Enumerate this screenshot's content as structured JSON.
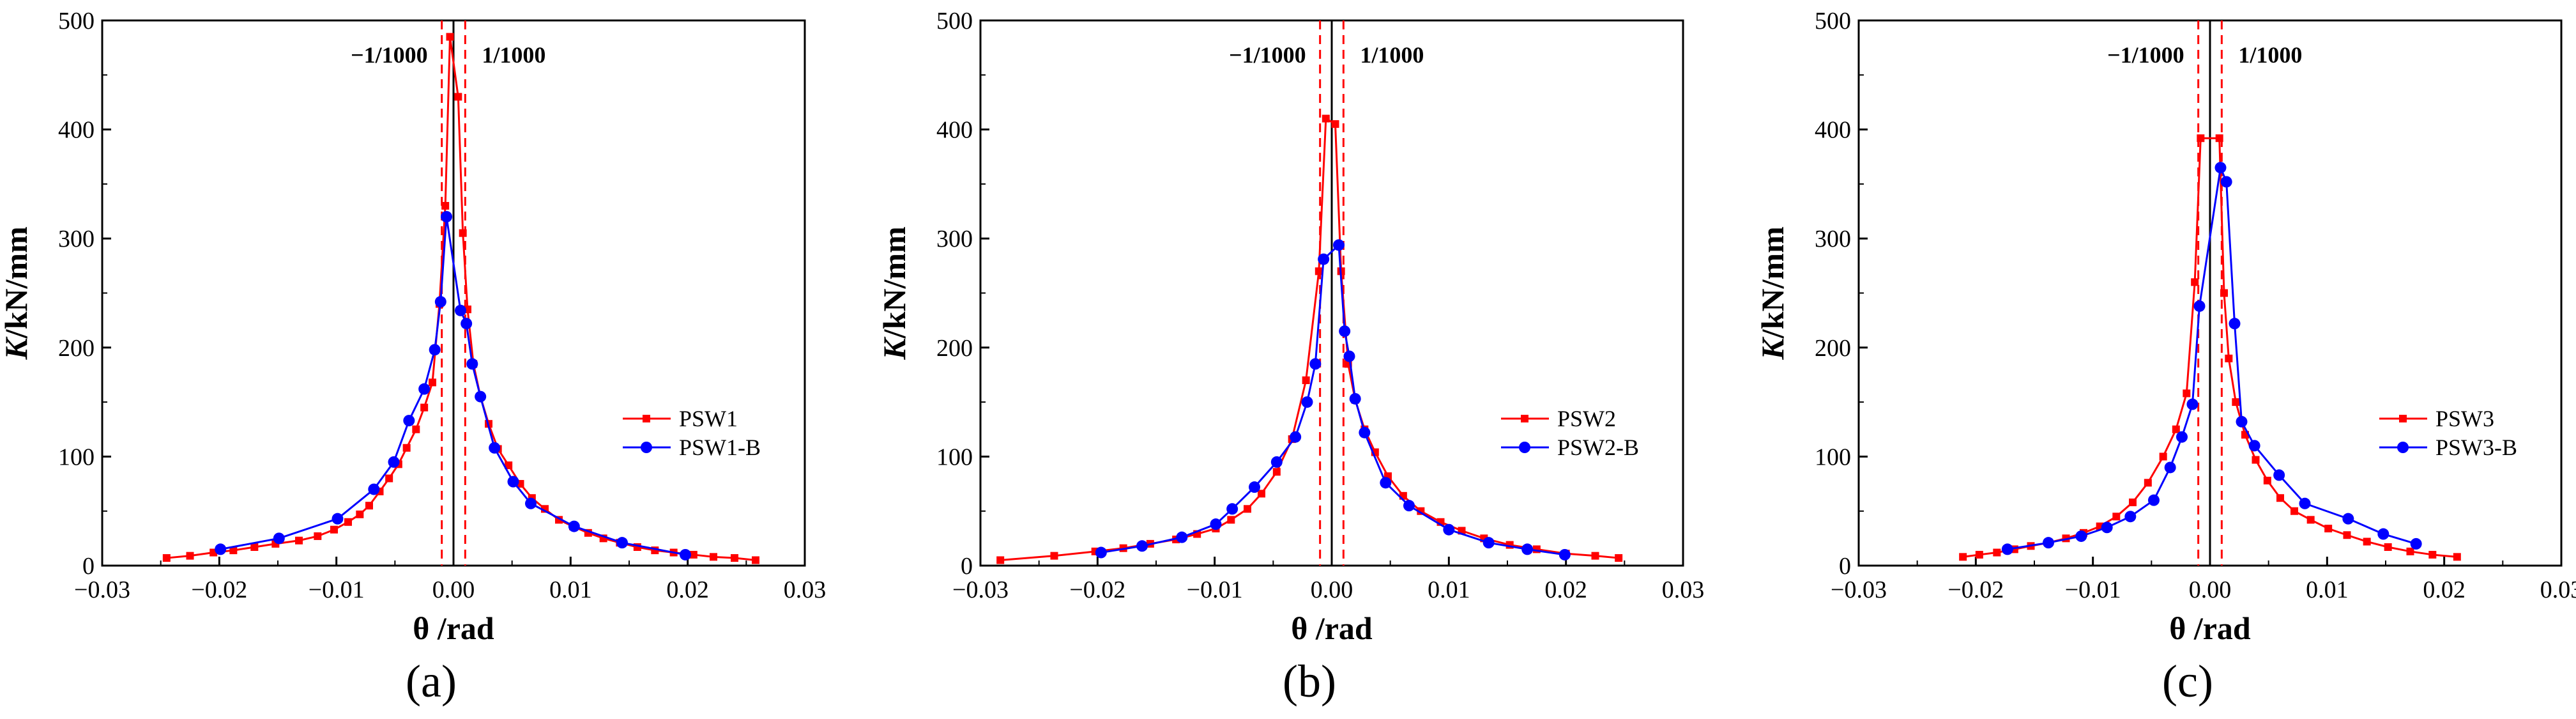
{
  "figure": {
    "panels": [
      "a",
      "b",
      "c"
    ]
  },
  "chart_data": [
    {
      "type": "line",
      "panel_label": "(a)",
      "xlabel": "θ /rad",
      "ylabel_italic": "K",
      "ylabel_rest": "/kN/mm",
      "xlim": [
        -0.03,
        0.03
      ],
      "ylim": [
        0,
        500
      ],
      "xticks": [
        "−0.03",
        "−0.02",
        "−0.01",
        "0.00",
        "0.01",
        "0.02",
        "0.03"
      ],
      "yticks": [
        "0",
        "100",
        "200",
        "300",
        "400",
        "500"
      ],
      "reference_lines": [
        {
          "x": -0.001,
          "label": "−1/1000"
        },
        {
          "x": 0.001,
          "label": "1/1000"
        }
      ],
      "legend_position": "right",
      "series": [
        {
          "name": "PSW1",
          "color": "#ff0000",
          "marker": "square",
          "x": [
            -0.0245,
            -0.0225,
            -0.0205,
            -0.0188,
            -0.017,
            -0.0152,
            -0.0132,
            -0.0116,
            -0.0102,
            -0.009,
            -0.008,
            -0.0072,
            -0.0063,
            -0.0055,
            -0.0047,
            -0.004,
            -0.0032,
            -0.0025,
            -0.0018,
            -0.0012,
            -0.0007,
            -0.0003,
            0.0004,
            0.0008,
            0.0012,
            0.0017,
            0.0023,
            0.003,
            0.0038,
            0.0047,
            0.0057,
            0.0067,
            0.0078,
            0.009,
            0.0102,
            0.0115,
            0.0128,
            0.0142,
            0.0157,
            0.0172,
            0.0188,
            0.0205,
            0.0222,
            0.024,
            0.0258
          ],
          "y": [
            7,
            9,
            12,
            14,
            17,
            20,
            23,
            27,
            33,
            40,
            47,
            55,
            68,
            80,
            93,
            108,
            125,
            145,
            168,
            240,
            330,
            485,
            430,
            305,
            235,
            185,
            155,
            130,
            107,
            92,
            75,
            62,
            52,
            42,
            36,
            30,
            25,
            21,
            17,
            14,
            12,
            10,
            8,
            7,
            5
          ]
        },
        {
          "name": "PSW1-B",
          "color": "#0000ff",
          "marker": "circle",
          "x": [
            -0.0199,
            -0.0149,
            -0.0099,
            -0.0068,
            -0.0051,
            -0.0038,
            -0.0025,
            -0.0016,
            -0.0011,
            -0.0006,
            0.0006,
            0.0011,
            0.0016,
            0.0023,
            0.0035,
            0.0051,
            0.0066,
            0.0103,
            0.0144,
            0.0198
          ],
          "y": [
            15,
            25,
            43,
            70,
            95,
            133,
            162,
            198,
            242,
            320,
            234,
            222,
            185,
            155,
            108,
            77,
            57,
            36,
            21,
            10
          ]
        }
      ]
    },
    {
      "type": "line",
      "panel_label": "(b)",
      "xlabel": "θ /rad",
      "ylabel_italic": "K",
      "ylabel_rest": "/kN/mm",
      "xlim": [
        -0.03,
        0.03
      ],
      "ylim": [
        0,
        500
      ],
      "xticks": [
        "−0.03",
        "−0.02",
        "−0.01",
        "0.00",
        "0.01",
        "0.02",
        "0.03"
      ],
      "yticks": [
        "0",
        "100",
        "200",
        "300",
        "400",
        "500"
      ],
      "reference_lines": [
        {
          "x": -0.001,
          "label": "−1/1000"
        },
        {
          "x": 0.001,
          "label": "1/1000"
        }
      ],
      "legend_position": "right",
      "series": [
        {
          "name": "PSW2",
          "color": "#ff0000",
          "marker": "square",
          "x": [
            -0.0283,
            -0.0237,
            -0.0202,
            -0.0178,
            -0.0155,
            -0.0133,
            -0.0115,
            -0.0099,
            -0.0086,
            -0.0072,
            -0.006,
            -0.0047,
            -0.0034,
            -0.0022,
            -0.0011,
            -0.0005,
            0.0003,
            0.0008,
            0.0014,
            0.002,
            0.0028,
            0.0037,
            0.0048,
            0.0061,
            0.0076,
            0.0093,
            0.0111,
            0.013,
            0.0152,
            0.0175,
            0.02,
            0.0225,
            0.0245
          ],
          "y": [
            5,
            9,
            13,
            16,
            20,
            24,
            29,
            34,
            42,
            52,
            66,
            86,
            116,
            170,
            270,
            410,
            405,
            270,
            185,
            152,
            125,
            104,
            82,
            64,
            50,
            40,
            32,
            25,
            19,
            15,
            11,
            9,
            7
          ]
        },
        {
          "name": "PSW2-B",
          "color": "#0000ff",
          "marker": "circle",
          "x": [
            -0.0197,
            -0.0162,
            -0.0128,
            -0.0099,
            -0.0085,
            -0.0066,
            -0.0047,
            -0.0031,
            -0.0021,
            -0.0014,
            -0.0007,
            0.0006,
            0.0011,
            0.0015,
            0.002,
            0.0028,
            0.0046,
            0.0066,
            0.01,
            0.0134,
            0.0167,
            0.0199
          ],
          "y": [
            12,
            18,
            26,
            38,
            52,
            72,
            95,
            118,
            150,
            185,
            281,
            294,
            215,
            192,
            153,
            122,
            76,
            55,
            33,
            21,
            15,
            10
          ]
        }
      ]
    },
    {
      "type": "line",
      "panel_label": "(c)",
      "xlabel": "θ /rad",
      "ylabel_italic": "K",
      "ylabel_rest": "/kN/mm",
      "xlim": [
        -0.03,
        0.03
      ],
      "ylim": [
        0,
        500
      ],
      "xticks": [
        "−0.03",
        "−0.02",
        "−0.01",
        "0.00",
        "0.01",
        "0.02",
        "0.03"
      ],
      "yticks": [
        "0",
        "100",
        "200",
        "300",
        "400",
        "500"
      ],
      "reference_lines": [
        {
          "x": -0.001,
          "label": "−1/1000"
        },
        {
          "x": 0.001,
          "label": "1/1000"
        }
      ],
      "legend_position": "right",
      "series": [
        {
          "name": "PSW3",
          "color": "#ff0000",
          "marker": "square",
          "x": [
            -0.0211,
            -0.0197,
            -0.0182,
            -0.0167,
            -0.0153,
            -0.0138,
            -0.0123,
            -0.0108,
            -0.0094,
            -0.008,
            -0.0066,
            -0.0053,
            -0.004,
            -0.0029,
            -0.002,
            -0.0013,
            -0.0008,
            0.0008,
            0.0012,
            0.0016,
            0.0022,
            0.003,
            0.0039,
            0.0049,
            0.006,
            0.0072,
            0.0086,
            0.0101,
            0.0117,
            0.0134,
            0.0152,
            0.0171,
            0.019,
            0.0211
          ],
          "y": [
            8,
            10,
            12,
            15,
            18,
            21,
            25,
            30,
            36,
            45,
            58,
            76,
            100,
            125,
            158,
            260,
            392,
            392,
            250,
            190,
            150,
            120,
            97,
            78,
            62,
            50,
            42,
            34,
            28,
            22,
            17,
            13,
            10,
            8
          ]
        },
        {
          "name": "PSW3-B",
          "color": "#0000ff",
          "marker": "circle",
          "x": [
            -0.0173,
            -0.0138,
            -0.011,
            -0.0088,
            -0.0068,
            -0.0048,
            -0.0034,
            -0.0024,
            -0.0015,
            -0.0009,
            0.0009,
            0.0014,
            0.0021,
            0.0027,
            0.0038,
            0.0059,
            0.0081,
            0.0118,
            0.0148,
            0.0176
          ],
          "y": [
            15,
            21,
            27,
            35,
            45,
            60,
            90,
            118,
            148,
            238,
            365,
            352,
            222,
            132,
            110,
            83,
            57,
            43,
            29,
            20
          ]
        }
      ]
    }
  ]
}
